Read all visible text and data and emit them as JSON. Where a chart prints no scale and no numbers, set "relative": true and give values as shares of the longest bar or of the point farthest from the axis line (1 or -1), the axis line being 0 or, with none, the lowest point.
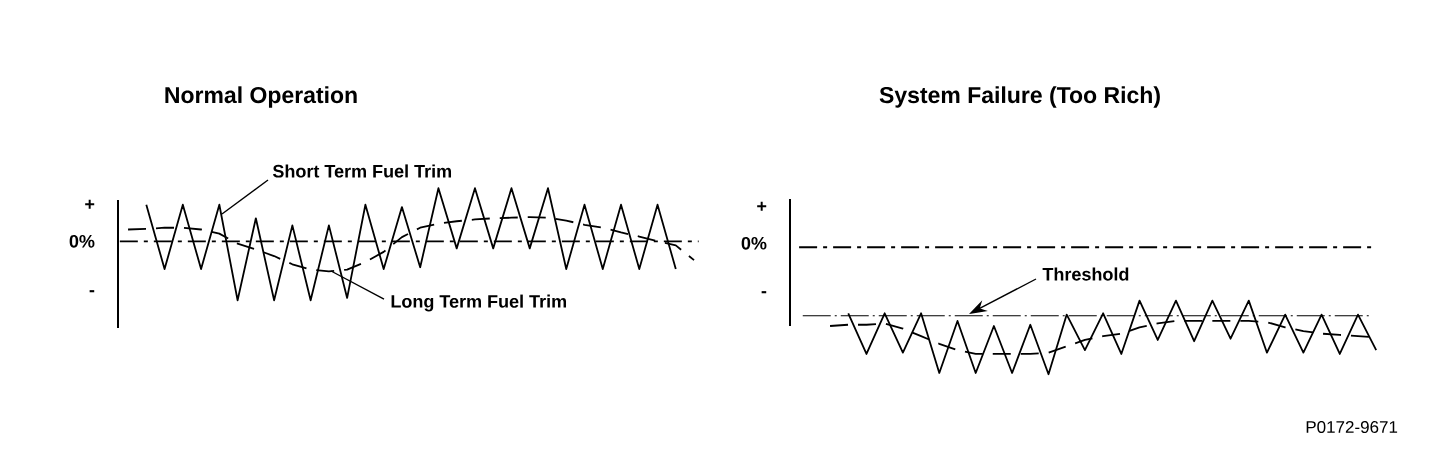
{
  "chart_data": [
    {
      "type": "line",
      "title": "Normal Operation",
      "relative": true,
      "annotations": [
        "+",
        "0%",
        "-"
      ],
      "ref_lines": [
        {
          "axis": "y",
          "value": 0
        }
      ],
      "categories": [
        null,
        null,
        null,
        null,
        null,
        null,
        null,
        null,
        null,
        null,
        null,
        null,
        null,
        null,
        null,
        null,
        null,
        null,
        null,
        null,
        null,
        null,
        null,
        null,
        null,
        null,
        null,
        null,
        null,
        null,
        null,
        null
      ],
      "series": [
        {
          "name": "Short Term Fuel Trim",
          "color": "#000000",
          "line_style": "solid",
          "values": [
            null,
            0.62,
            -0.47,
            0.62,
            -0.47,
            0.62,
            -1,
            0.39,
            -1,
            0.27,
            -1,
            0.27,
            -0.96,
            0.62,
            -0.47,
            0.58,
            -0.44,
            0.9,
            -0.12,
            0.9,
            -0.12,
            0.9,
            -0.12,
            0.9,
            -0.47,
            0.62,
            -0.47,
            0.62,
            -0.47,
            0.62,
            -0.47,
            null
          ]
        },
        {
          "name": "Long Term Fuel Trim",
          "color": "#000000",
          "line_style": "dashed",
          "values": [
            0.2,
            0.21,
            0.23,
            0.23,
            0.2,
            0.13,
            -0.04,
            -0.14,
            -0.25,
            -0.39,
            -0.48,
            -0.51,
            -0.48,
            -0.35,
            -0.18,
            0.07,
            0.23,
            0.3,
            0.34,
            0.37,
            0.39,
            0.4,
            0.41,
            0.4,
            0.35,
            0.28,
            0.23,
            0.15,
            0.08,
            0,
            -0.07,
            -0.32
          ]
        }
      ]
    },
    {
      "type": "line",
      "title": "System Failure (Too Rich)",
      "relative": true,
      "annotations": [
        "+",
        "0%",
        "-",
        "P0172-9671"
      ],
      "categories": [
        null,
        null,
        null,
        null,
        null,
        null,
        null,
        null,
        null,
        null,
        null,
        null,
        null,
        null,
        null,
        null,
        null,
        null,
        null,
        null,
        null,
        null,
        null,
        null,
        null,
        null,
        null,
        null,
        null,
        null,
        null
      ],
      "ref_lines": [
        {
          "axis": "y",
          "value": 0
        },
        {
          "axis": "y",
          "value": -0.54,
          "label": "Threshold"
        }
      ],
      "series": [
        {
          "color": "#000000",
          "line_style": "solid",
          "values": [
            null,
            -0.52,
            -0.84,
            -0.52,
            -0.83,
            -0.52,
            -0.99,
            -0.58,
            -0.99,
            -0.62,
            -0.99,
            -0.61,
            -1,
            -0.53,
            -0.81,
            -0.52,
            -0.84,
            -0.42,
            -0.73,
            -0.42,
            -0.74,
            -0.42,
            -0.72,
            -0.42,
            -0.83,
            -0.53,
            -0.83,
            -0.53,
            -0.84,
            -0.53,
            -0.81
          ]
        },
        {
          "color": "#000000",
          "line_style": "dashed",
          "values": [
            -0.62,
            -0.61,
            -0.61,
            -0.6,
            -0.64,
            -0.7,
            -0.76,
            -0.81,
            -0.84,
            -0.84,
            -0.84,
            -0.84,
            -0.83,
            -0.78,
            -0.73,
            -0.7,
            -0.68,
            -0.63,
            -0.6,
            -0.58,
            -0.58,
            -0.58,
            -0.58,
            -0.58,
            -0.59,
            -0.63,
            -0.66,
            -0.68,
            -0.69,
            -0.7,
            -0.71
          ]
        }
      ]
    }
  ]
}
